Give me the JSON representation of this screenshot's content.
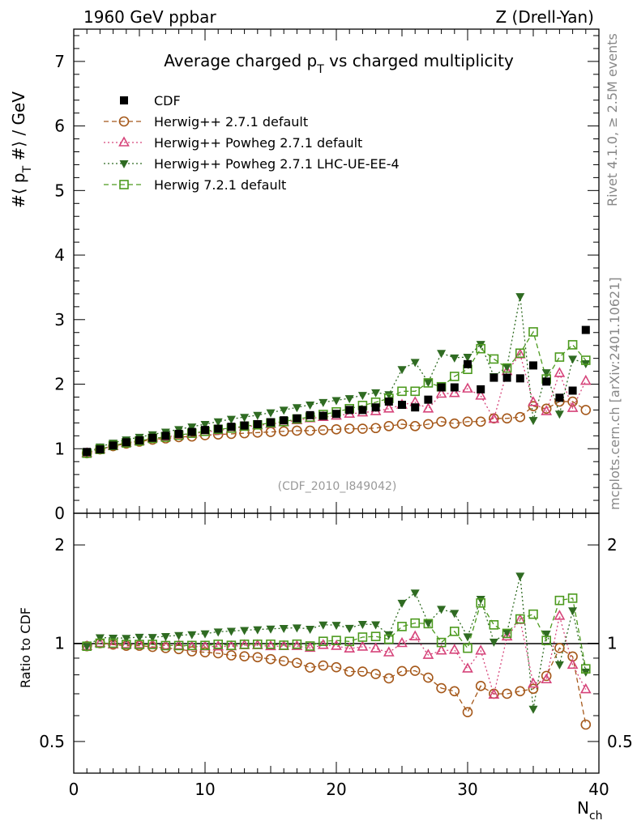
{
  "header": {
    "left": "1960 GeV ppbar",
    "right": "Z (Drell-Yan)",
    "title_main": "Average charged p",
    "title_sub": "T",
    "title_tail": " vs charged multiplicity",
    "analysis_id": "(CDF_2010_I849042)",
    "side_top": "Rivet 4.1.0, ≥ 2.5M events",
    "side_bottom": "mcplots.cern.ch [arXiv:2401.10621]"
  },
  "colors": {
    "CDF": "#000000",
    "H271": "#a5581a",
    "H271P": "#d6447a",
    "H271PL": "#2f6b22",
    "H721": "#4c9a1e"
  },
  "chart_data": {
    "type": "scatter",
    "x": [
      1,
      2,
      3,
      4,
      5,
      6,
      7,
      8,
      9,
      10,
      11,
      12,
      13,
      14,
      15,
      16,
      17,
      18,
      19,
      20,
      21,
      22,
      23,
      24,
      25,
      26,
      27,
      28,
      29,
      30,
      31,
      32,
      33,
      34,
      35,
      36,
      37,
      38,
      39
    ],
    "main": {
      "ylabel_pre": "#⟨ p",
      "ylabel_sub": "T",
      "ylabel_post": " #⟩ / GeV",
      "ylim": [
        0,
        7.5
      ],
      "xlim": [
        0,
        40
      ],
      "yticks": [
        "0",
        "1",
        "2",
        "3",
        "4",
        "5",
        "6",
        "7"
      ],
      "xticks": [
        "0",
        "10",
        "20",
        "30",
        "40"
      ]
    },
    "ratio": {
      "ylabel": "Ratio to CDF",
      "scale": "log",
      "ylim": [
        0.4,
        2.5
      ],
      "yticks": [
        "0.5",
        "1",
        "2"
      ]
    },
    "xlabel_main": "N",
    "xlabel_sub": "ch",
    "series": [
      {
        "key": "CDF",
        "name": "CDF",
        "marker": "filled-square",
        "line": "none",
        "values": [
          0.95,
          0.99,
          1.05,
          1.1,
          1.13,
          1.17,
          1.2,
          1.23,
          1.26,
          1.29,
          1.31,
          1.34,
          1.36,
          1.38,
          1.41,
          1.44,
          1.47,
          1.52,
          1.51,
          1.54,
          1.6,
          1.6,
          1.64,
          1.73,
          1.68,
          1.64,
          1.76,
          1.95,
          1.95,
          2.31,
          1.92,
          2.1,
          2.1,
          2.09,
          2.29,
          2.04,
          1.79,
          1.9,
          2.84
        ]
      },
      {
        "key": "H271",
        "name": "Herwig++ 2.7.1 default",
        "marker": "open-circle",
        "line": "dashed",
        "values": [
          0.93,
          0.99,
          1.04,
          1.08,
          1.11,
          1.14,
          1.16,
          1.18,
          1.19,
          1.21,
          1.22,
          1.23,
          1.24,
          1.25,
          1.26,
          1.27,
          1.28,
          1.28,
          1.29,
          1.3,
          1.31,
          1.31,
          1.32,
          1.35,
          1.38,
          1.35,
          1.38,
          1.42,
          1.39,
          1.42,
          1.42,
          1.47,
          1.47,
          1.49,
          1.66,
          1.62,
          1.73,
          1.73,
          1.6
        ]
      },
      {
        "key": "H271P",
        "name": "Herwig++ Powheg 2.7.1 default",
        "marker": "open-triangle",
        "line": "dotted",
        "values": [
          0.93,
          0.99,
          1.04,
          1.09,
          1.12,
          1.16,
          1.18,
          1.21,
          1.23,
          1.26,
          1.28,
          1.31,
          1.34,
          1.36,
          1.38,
          1.41,
          1.44,
          1.47,
          1.49,
          1.51,
          1.54,
          1.56,
          1.58,
          1.62,
          1.68,
          1.72,
          1.62,
          1.85,
          1.86,
          1.93,
          1.82,
          1.46,
          2.2,
          2.46,
          1.72,
          1.58,
          2.17,
          1.63,
          2.05
        ]
      },
      {
        "key": "H271PL",
        "name": "Herwig++ Powheg 2.7.1 LHC-UE-EE-4",
        "marker": "filled-triangle-down",
        "line": "dotted",
        "values": [
          0.93,
          1.03,
          1.09,
          1.14,
          1.18,
          1.22,
          1.26,
          1.3,
          1.34,
          1.38,
          1.42,
          1.46,
          1.49,
          1.52,
          1.56,
          1.6,
          1.64,
          1.68,
          1.72,
          1.75,
          1.78,
          1.83,
          1.87,
          1.84,
          2.23,
          2.34,
          2.03,
          2.48,
          2.41,
          2.42,
          2.62,
          2.12,
          2.27,
          3.36,
          1.44,
          2.18,
          1.54,
          2.39,
          2.32
        ]
      },
      {
        "key": "H721",
        "name": "Herwig 7.2.1 default",
        "marker": "open-square",
        "line": "dashed",
        "values": [
          0.93,
          0.99,
          1.05,
          1.09,
          1.12,
          1.16,
          1.18,
          1.21,
          1.24,
          1.27,
          1.3,
          1.32,
          1.35,
          1.37,
          1.4,
          1.42,
          1.46,
          1.49,
          1.53,
          1.57,
          1.62,
          1.67,
          1.72,
          1.78,
          1.89,
          1.89,
          2.02,
          1.96,
          2.12,
          2.23,
          2.55,
          2.39,
          2.25,
          2.48,
          2.81,
          2.08,
          2.42,
          2.61,
          2.37
        ]
      }
    ]
  }
}
